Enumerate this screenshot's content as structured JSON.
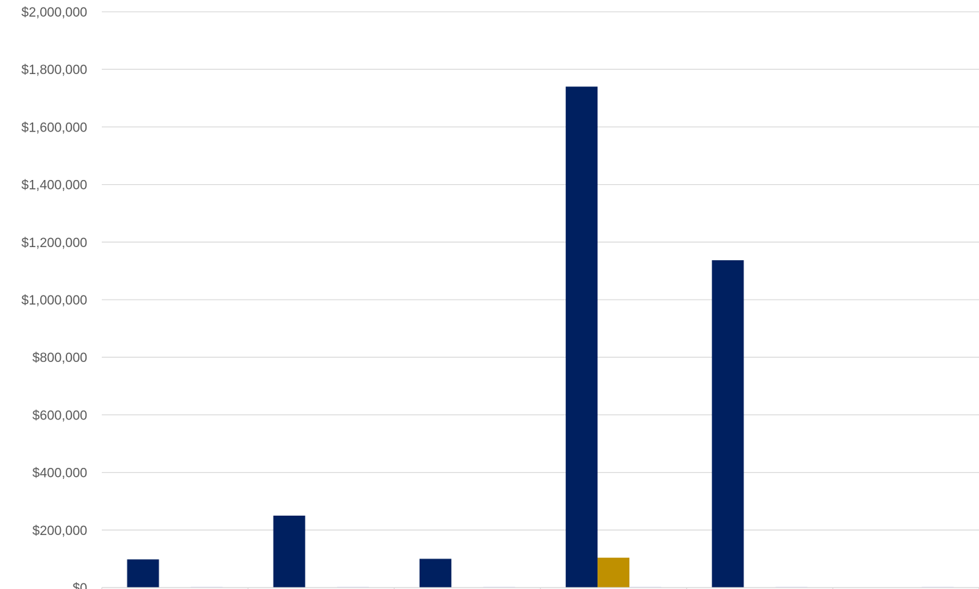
{
  "chart_data": {
    "type": "bar",
    "categories": [
      "",
      "",
      "",
      "",
      "",
      ""
    ],
    "series": [
      {
        "color": "#002060",
        "values": [
          98000,
          250000,
          100000,
          1740000,
          1137000,
          0
        ]
      },
      {
        "color": "#BF9000",
        "values": [
          0,
          0,
          0,
          104000,
          0,
          0
        ]
      },
      {
        "color": "#D9DCF5",
        "values": [
          3000,
          3000,
          3000,
          3000,
          3000,
          3000
        ]
      }
    ],
    "y_ticks": [
      "$0",
      "$200,000",
      "$400,000",
      "$600,000",
      "$800,000",
      "$1,000,000",
      "$1,200,000",
      "$1,400,000",
      "$1,600,000",
      "$1,800,000",
      "$2,000,000"
    ],
    "y_tick_values": [
      0,
      200000,
      400000,
      600000,
      800000,
      1000000,
      1200000,
      1400000,
      1600000,
      1800000,
      2000000
    ],
    "ylim": [
      0,
      2000000
    ],
    "grid": true,
    "gridline_color": "#D9D9D9",
    "legend": "none",
    "title": "",
    "xlabel": "",
    "ylabel": ""
  }
}
